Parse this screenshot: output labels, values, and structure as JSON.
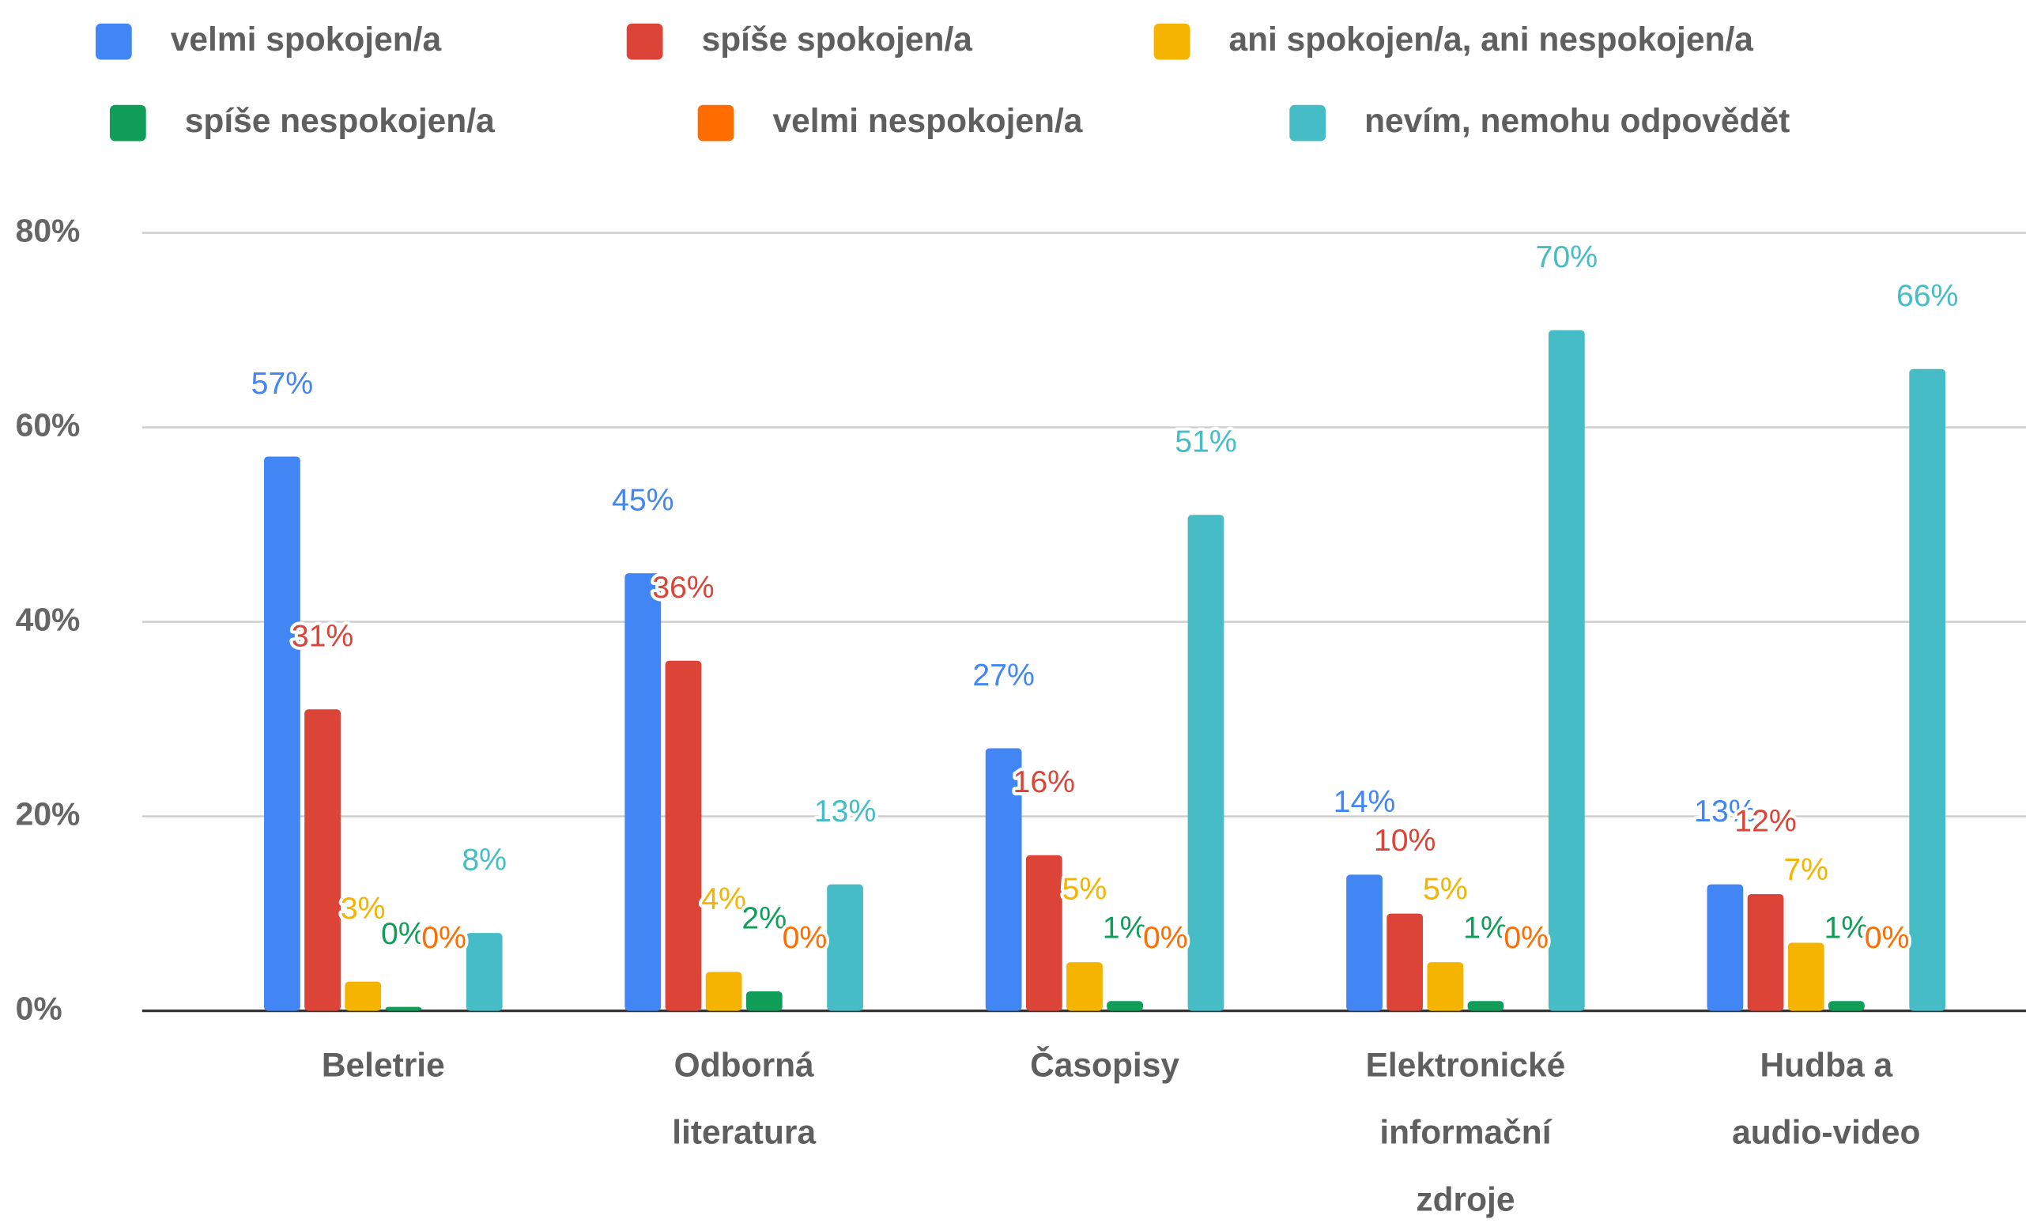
{
  "chart_data": {
    "type": "bar",
    "categories": [
      "Beletrie",
      "Odborná literatura",
      "Časopisy",
      "Elektronické informační zdroje",
      "Hudba a audio-video"
    ],
    "series": [
      {
        "name": "velmi spokojen/a",
        "color": "#4285f4",
        "values": [
          57,
          45,
          27,
          14,
          13
        ],
        "value_labels": [
          "57%",
          "45%",
          "27%",
          "14%",
          "13%"
        ]
      },
      {
        "name": "spíše spokojen/a",
        "color": "#db4437",
        "values": [
          31,
          36,
          16,
          10,
          12
        ],
        "value_labels": [
          "31%",
          "36%",
          "16%",
          "10%",
          "12%"
        ]
      },
      {
        "name": "ani spokojen/a, ani nespokojen/a",
        "color": "#f4b400",
        "values": [
          3,
          4,
          5,
          5,
          7
        ],
        "value_labels": [
          "3%",
          "4%",
          "5%",
          "5%",
          "7%"
        ]
      },
      {
        "name": "spíše nespokojen/a",
        "color": "#0f9d58",
        "values": [
          0.4,
          2,
          1,
          1,
          1
        ],
        "value_labels": [
          "0%",
          "2%",
          "1%",
          "1%",
          "1%"
        ]
      },
      {
        "name": "velmi nespokojen/a",
        "color": "#ff6d00",
        "values": [
          0,
          0,
          0,
          0,
          0
        ],
        "value_labels": [
          "0%",
          "0%",
          "0%",
          "0%",
          "0%"
        ]
      },
      {
        "name": "nevím, nemohu odpovědět",
        "color": "#46bdc6",
        "values": [
          8,
          13,
          51,
          70,
          66
        ],
        "value_labels": [
          "8%",
          "13%",
          "51%",
          "70%",
          "66%"
        ]
      }
    ],
    "ylim": [
      0,
      80
    ],
    "yticks": [
      {
        "value": 0,
        "label": "0%"
      },
      {
        "value": 20,
        "label": "20%"
      },
      {
        "value": 40,
        "label": "40%"
      },
      {
        "value": 60,
        "label": "60%"
      },
      {
        "value": 80,
        "label": "80%"
      }
    ],
    "grid": true,
    "legend": "top"
  }
}
